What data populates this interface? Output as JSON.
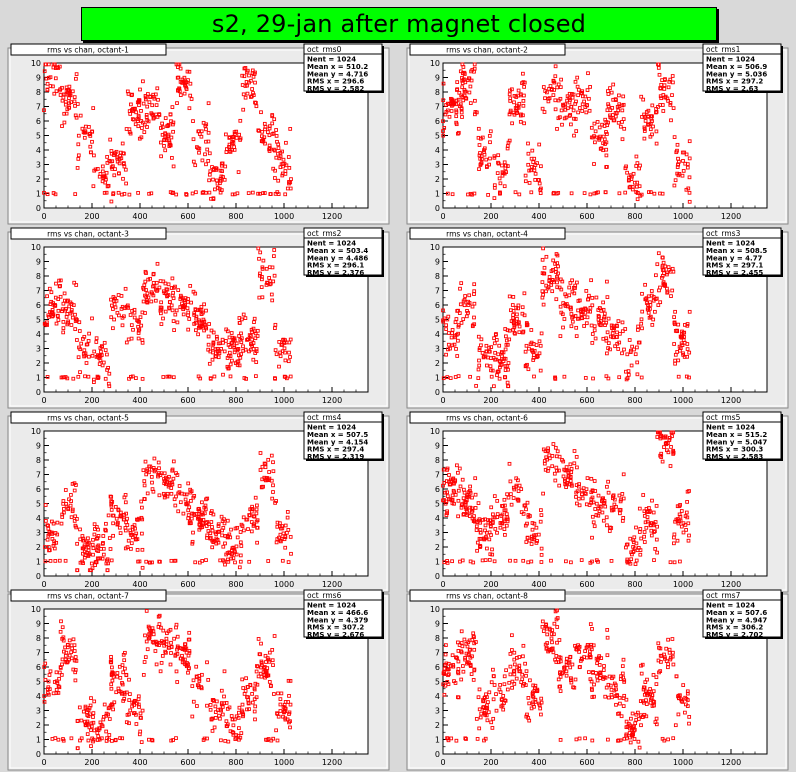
{
  "page_title": "s2, 29-jan after magnet closed",
  "colors": {
    "marker": "#ff0000",
    "canvas_bg": "#d9d9d9",
    "frame_bg": "#ebebeb",
    "title_bg": "#00ff00"
  },
  "chart_data": [
    {
      "type": "scatter",
      "title": "rms vs chan, octant-1",
      "stats": {
        "name": "oct_rms0",
        "lines": [
          "Nent = 1024",
          "Mean x =  510.2",
          "Mean y =  4.716",
          "RMS x =  296.6",
          "RMS y =  2.582"
        ]
      },
      "xlim": [
        0,
        1350
      ],
      "ylim": [
        0,
        10
      ],
      "xticks": [
        0,
        200,
        400,
        600,
        800,
        1000,
        1200
      ],
      "yticks": [
        0,
        1,
        2,
        3,
        4,
        5,
        6,
        7,
        8,
        9,
        10
      ],
      "seed": 11,
      "ylevels": [
        9,
        7.5,
        5,
        2.5,
        3,
        6.5,
        7,
        5,
        8.5,
        4.5,
        2,
        4.5,
        8.5,
        5,
        3
      ]
    },
    {
      "type": "scatter",
      "title": "rms vs chan, octant-2",
      "stats": {
        "name": "oct_rms1",
        "lines": [
          "Nent = 1024",
          "Mean x =  506.9",
          "Mean y =  5.036",
          "RMS x =  297.2",
          "RMS y =    2.63"
        ]
      },
      "xlim": [
        0,
        1350
      ],
      "ylim": [
        0,
        10
      ],
      "xticks": [
        0,
        200,
        400,
        600,
        800,
        1000,
        1200
      ],
      "yticks": [
        0,
        1,
        2,
        3,
        4,
        5,
        6,
        7,
        8,
        9,
        10
      ],
      "seed": 23,
      "ylevels": [
        7,
        8.5,
        4,
        2.5,
        7,
        3,
        8,
        7,
        7.5,
        5,
        7,
        2,
        6,
        8,
        3
      ]
    },
    {
      "type": "scatter",
      "title": "rms vs chan, octant-3",
      "stats": {
        "name": "oct_rms2",
        "lines": [
          "Nent = 1024",
          "Mean x =  503.4",
          "Mean y =  4.486",
          "RMS x =  296.1",
          "RMS y =  2.376"
        ]
      },
      "xlim": [
        0,
        1350
      ],
      "ylim": [
        0,
        10
      ],
      "xticks": [
        0,
        200,
        400,
        600,
        800,
        1000,
        1200
      ],
      "yticks": [
        0,
        1,
        2,
        3,
        4,
        5,
        6,
        7,
        8,
        9,
        10
      ],
      "seed": 37,
      "ylevels": [
        6,
        5.5,
        3,
        2.5,
        6,
        5,
        7,
        6.5,
        6,
        5,
        3,
        3,
        3.5,
        8,
        3
      ]
    },
    {
      "type": "scatter",
      "title": "rms vs chan, octant-4",
      "stats": {
        "name": "oct_rms3",
        "lines": [
          "Nent = 1024",
          "Mean x =  508.5",
          "Mean y =   4.77",
          "RMS x =  297.1",
          "RMS y =  2.455"
        ]
      },
      "xlim": [
        0,
        1350
      ],
      "ylim": [
        0,
        10
      ],
      "xticks": [
        0,
        200,
        400,
        600,
        800,
        1000,
        1200
      ],
      "yticks": [
        0,
        1,
        2,
        3,
        4,
        5,
        6,
        7,
        8,
        9,
        10
      ],
      "seed": 41,
      "ylevels": [
        4,
        6,
        3,
        2.5,
        5,
        3,
        8,
        6,
        5.5,
        5,
        4,
        2.5,
        6,
        8,
        3.5
      ]
    },
    {
      "type": "scatter",
      "title": "rms vs chan, octant-5",
      "stats": {
        "name": "oct_rms4",
        "lines": [
          "Nent = 1024",
          "Mean x =  507.5",
          "Mean y =  4.154",
          "RMS x =  297.4",
          "RMS y =  2.319"
        ]
      },
      "xlim": [
        0,
        1350
      ],
      "ylim": [
        0,
        10
      ],
      "xticks": [
        0,
        200,
        400,
        600,
        800,
        1000,
        1200
      ],
      "yticks": [
        0,
        1,
        2,
        3,
        4,
        5,
        6,
        7,
        8,
        9,
        10
      ],
      "seed": 53,
      "ylevels": [
        3,
        5,
        2,
        2,
        4,
        3,
        7,
        6,
        5,
        4,
        3,
        2,
        4,
        7,
        3
      ]
    },
    {
      "type": "scatter",
      "title": "rms vs chan, octant-6",
      "stats": {
        "name": "oct_rms5",
        "lines": [
          "Nent = 1024",
          "Mean x =  515.2",
          "Mean y =  5.047",
          "RMS x =  300.3",
          "RMS y =  2.583"
        ]
      },
      "xlim": [
        0,
        1350
      ],
      "ylim": [
        0,
        10
      ],
      "xticks": [
        0,
        200,
        400,
        600,
        800,
        1000,
        1200
      ],
      "yticks": [
        0,
        1,
        2,
        3,
        4,
        5,
        6,
        7,
        8,
        9,
        10
      ],
      "seed": 67,
      "ylevels": [
        6,
        5,
        3,
        4,
        6,
        3,
        8,
        7,
        6,
        5,
        5,
        2,
        4,
        9,
        4
      ]
    },
    {
      "type": "scatter",
      "title": "rms vs chan, octant-7",
      "stats": {
        "name": "oct_rms6",
        "lines": [
          "Nent = 1024",
          "Mean x =  466.6",
          "Mean y =  4.379",
          "RMS x =  307.2",
          "RMS y =  2.676"
        ]
      },
      "xlim": [
        0,
        1350
      ],
      "ylim": [
        0,
        10
      ],
      "xticks": [
        0,
        200,
        400,
        600,
        800,
        1000,
        1200
      ],
      "yticks": [
        0,
        1,
        2,
        3,
        4,
        5,
        6,
        7,
        8,
        9,
        10
      ],
      "seed": 79,
      "ylevels": [
        5,
        7,
        2.5,
        2,
        5,
        3,
        8,
        7.5,
        7,
        5,
        3,
        2,
        4,
        6,
        3
      ]
    },
    {
      "type": "scatter",
      "title": "rms vs chan, octant-8",
      "stats": {
        "name": "oct_rms7",
        "lines": [
          "Nent = 1024",
          "Mean x =  507.6",
          "Mean y =  4.947",
          "RMS x =  306.2",
          "RMS y =  2.702"
        ]
      },
      "xlim": [
        0,
        1350
      ],
      "ylim": [
        0,
        10
      ],
      "xticks": [
        0,
        200,
        400,
        600,
        800,
        1000,
        1200
      ],
      "yticks": [
        0,
        1,
        2,
        3,
        4,
        5,
        6,
        7,
        8,
        9,
        10
      ],
      "seed": 83,
      "ylevels": [
        6,
        7,
        3,
        4,
        6,
        4,
        8,
        6,
        7,
        6,
        4,
        2,
        4,
        7,
        4
      ]
    }
  ]
}
